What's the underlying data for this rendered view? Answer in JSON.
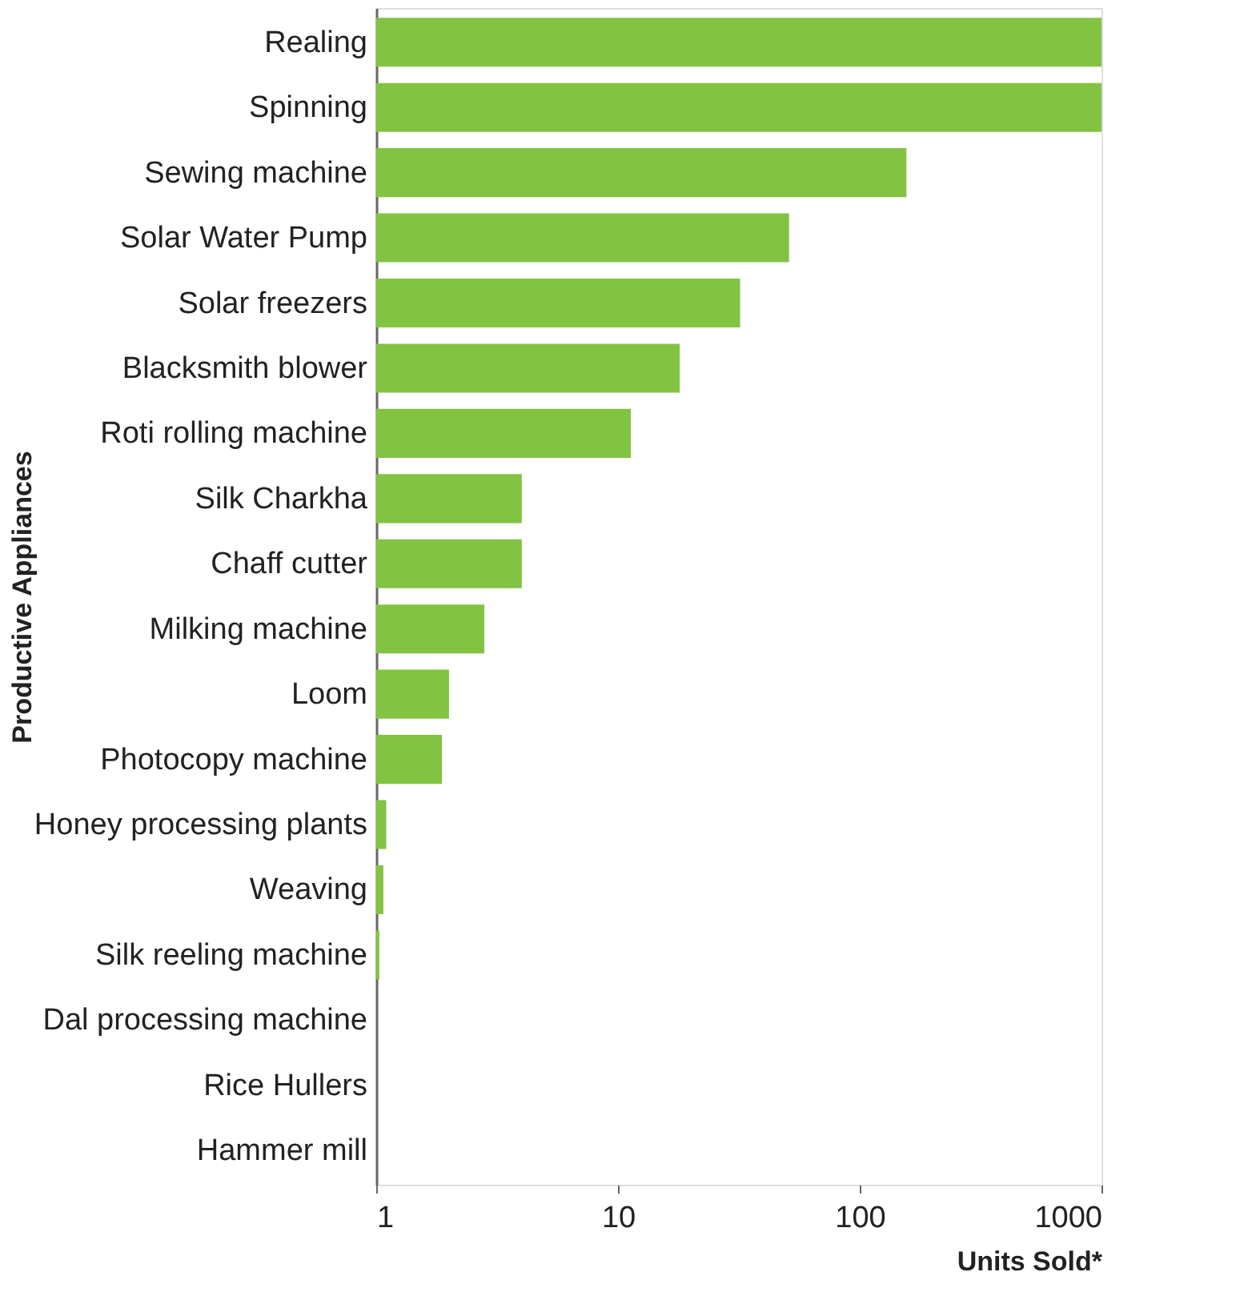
{
  "chart_data": {
    "type": "bar",
    "orientation": "horizontal",
    "log": "x",
    "xlabel": "Units Sold*",
    "ylabel": "Productive Appliances",
    "categories": [
      "Realing",
      "Spinning",
      "Sewing machine",
      "Solar Water Pump",
      "Solar freezers",
      "Blacksmith blower",
      "Roti rolling machine",
      "Silk Charkha",
      "Chaff cutter",
      "Milking machine",
      "Loom",
      "Photocopy machine",
      "Honey processing plants",
      "Weaving",
      "Silk reeling machine",
      "Dal processing machine",
      "Rice Hullers",
      "Hammer mill"
    ],
    "values": [
      1000,
      1000,
      156,
      51,
      32,
      18,
      11.3,
      4,
      4,
      2.8,
      2,
      1.87,
      1.1,
      1.07,
      1.03,
      1,
      1,
      1
    ],
    "color": "#82c341",
    "xlim": [
      1,
      1000
    ],
    "xticks": [
      1,
      10,
      100,
      1000
    ],
    "grid": false
  }
}
